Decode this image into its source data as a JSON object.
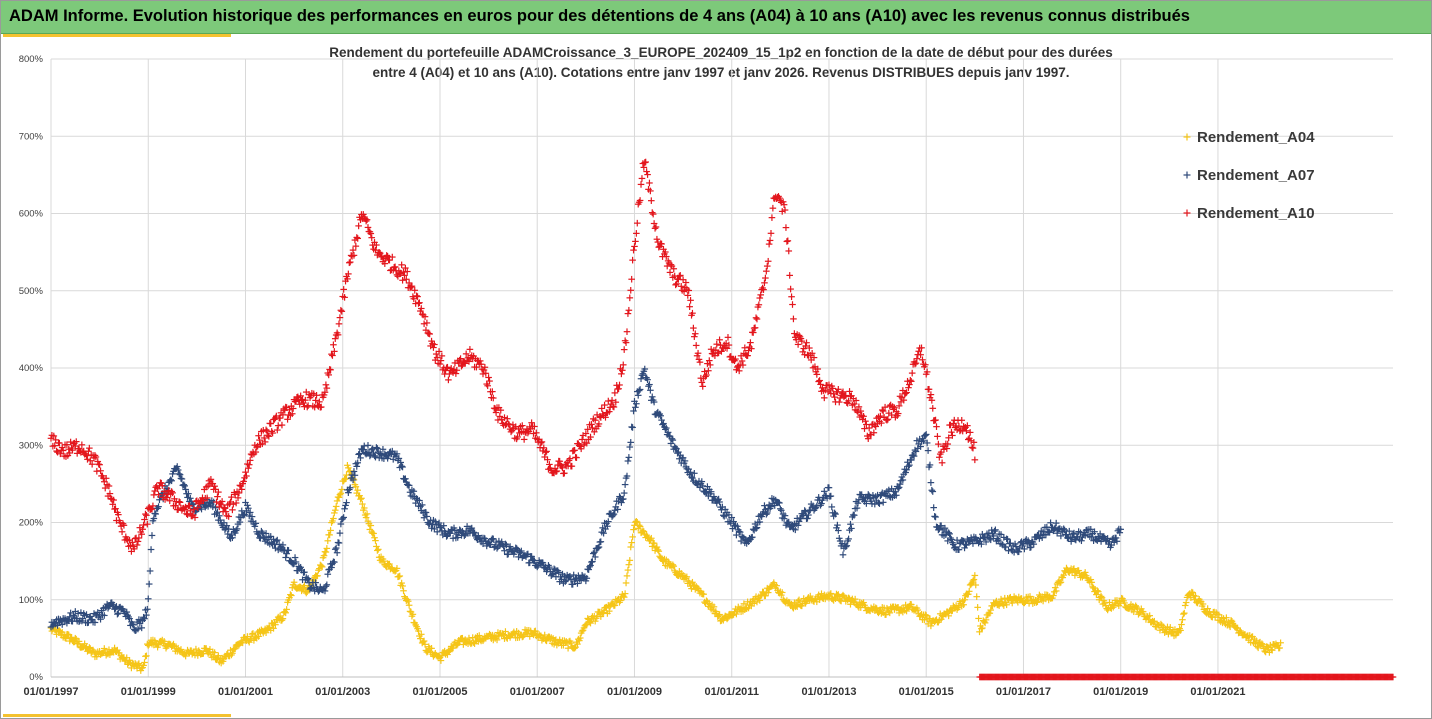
{
  "header": {
    "title": "ADAM Informe. Evolution historique des performances en euros pour des détentions de 4 ans (A04) à 10 ans (A10) avec les revenus connus distribués"
  },
  "colors": {
    "header_bg": "#7dc97a",
    "accent": "#f4c230",
    "series_A04": "#f5c518",
    "series_A07": "#2f4a7a",
    "series_A10": "#e3161d",
    "grid": "#d9d9d9"
  },
  "chart_data": {
    "type": "scatter",
    "marker": "plus",
    "title_lines": [
      "Rendement du portefeuille ADAMCroissance_3_EUROPE_202409_15_1p2  en fonction de la date de début pour des durées",
      "entre 4 (A04) et 10 ans (A10). Cotations entre janv 1997 et janv 2026. Revenus DISTRIBUES depuis janv 1997."
    ],
    "x_axis": {
      "unit": "year",
      "range": [
        1997.0,
        2024.6
      ],
      "tick_values": [
        1997,
        1999,
        2001,
        2003,
        2005,
        2007,
        2009,
        2011,
        2013,
        2015,
        2017,
        2019,
        2021
      ],
      "tick_labels": [
        "01/01/1997",
        "01/01/1999",
        "01/01/2001",
        "01/01/2003",
        "01/01/2005",
        "01/01/2007",
        "01/01/2009",
        "01/01/2011",
        "01/01/2013",
        "01/01/2015",
        "01/01/2017",
        "01/01/2019",
        "01/01/2021"
      ]
    },
    "y_axis": {
      "range": [
        0,
        800
      ],
      "tick_values": [
        0,
        100,
        200,
        300,
        400,
        500,
        600,
        700,
        800
      ],
      "tick_labels": [
        "0%",
        "100%",
        "200%",
        "300%",
        "400%",
        "500%",
        "600%",
        "700%",
        "800%"
      ],
      "grid": true
    },
    "legend": {
      "position": "right",
      "entries": [
        "Rendement_A04",
        "Rendement_A07",
        "Rendement_A10"
      ]
    },
    "series": [
      {
        "name": "Rendement_A04",
        "color": "#f5c518",
        "x_start": 1997.0,
        "x_end": 2022.3,
        "anchors": [
          [
            1997.0,
            62
          ],
          [
            1997.4,
            50
          ],
          [
            1997.9,
            30
          ],
          [
            1998.3,
            35
          ],
          [
            1998.6,
            18
          ],
          [
            1998.9,
            10
          ],
          [
            1999.0,
            45
          ],
          [
            1999.4,
            42
          ],
          [
            1999.8,
            30
          ],
          [
            2000.2,
            35
          ],
          [
            2000.5,
            20
          ],
          [
            2000.9,
            45
          ],
          [
            2001.4,
            58
          ],
          [
            2001.8,
            80
          ],
          [
            2002.0,
            120
          ],
          [
            2002.3,
            112
          ],
          [
            2002.6,
            150
          ],
          [
            2002.9,
            230
          ],
          [
            2003.1,
            270
          ],
          [
            2003.4,
            225
          ],
          [
            2003.8,
            150
          ],
          [
            2004.1,
            140
          ],
          [
            2004.4,
            85
          ],
          [
            2004.7,
            38
          ],
          [
            2005.0,
            25
          ],
          [
            2005.4,
            45
          ],
          [
            2005.9,
            50
          ],
          [
            2006.4,
            55
          ],
          [
            2006.9,
            57
          ],
          [
            2007.4,
            45
          ],
          [
            2007.8,
            40
          ],
          [
            2008.0,
            70
          ],
          [
            2008.4,
            85
          ],
          [
            2008.8,
            105
          ],
          [
            2009.0,
            200
          ],
          [
            2009.3,
            180
          ],
          [
            2009.6,
            150
          ],
          [
            2010.0,
            130
          ],
          [
            2010.4,
            105
          ],
          [
            2010.8,
            75
          ],
          [
            2011.1,
            85
          ],
          [
            2011.5,
            100
          ],
          [
            2011.9,
            120
          ],
          [
            2012.2,
            92
          ],
          [
            2012.6,
            100
          ],
          [
            2013.0,
            105
          ],
          [
            2013.4,
            100
          ],
          [
            2013.8,
            90
          ],
          [
            2014.2,
            85
          ],
          [
            2014.7,
            90
          ],
          [
            2015.1,
            70
          ],
          [
            2015.5,
            85
          ],
          [
            2015.8,
            100
          ],
          [
            2016.0,
            130
          ],
          [
            2016.1,
            60
          ],
          [
            2016.4,
            95
          ],
          [
            2016.8,
            100
          ],
          [
            2017.2,
            100
          ],
          [
            2017.6,
            105
          ],
          [
            2017.9,
            140
          ],
          [
            2018.3,
            130
          ],
          [
            2018.7,
            90
          ],
          [
            2019.0,
            98
          ],
          [
            2019.4,
            85
          ],
          [
            2019.8,
            65
          ],
          [
            2020.2,
            55
          ],
          [
            2020.4,
            110
          ],
          [
            2020.8,
            85
          ],
          [
            2021.3,
            68
          ],
          [
            2021.7,
            48
          ],
          [
            2022.0,
            35
          ],
          [
            2022.3,
            40
          ]
        ]
      },
      {
        "name": "Rendement_A07",
        "color": "#2f4a7a",
        "x_start": 1997.0,
        "x_end": 2019.0,
        "anchors": [
          [
            1997.0,
            70
          ],
          [
            1997.5,
            78
          ],
          [
            1997.9,
            75
          ],
          [
            1998.2,
            92
          ],
          [
            1998.5,
            85
          ],
          [
            1998.7,
            62
          ],
          [
            1998.9,
            72
          ],
          [
            1999.0,
            95
          ],
          [
            1999.1,
            210
          ],
          [
            1999.3,
            235
          ],
          [
            1999.6,
            270
          ],
          [
            1999.9,
            220
          ],
          [
            2000.3,
            225
          ],
          [
            2000.7,
            180
          ],
          [
            2001.0,
            220
          ],
          [
            2001.3,
            185
          ],
          [
            2001.7,
            170
          ],
          [
            2002.0,
            150
          ],
          [
            2002.3,
            120
          ],
          [
            2002.6,
            110
          ],
          [
            2002.9,
            170
          ],
          [
            2003.1,
            240
          ],
          [
            2003.4,
            295
          ],
          [
            2003.8,
            290
          ],
          [
            2004.1,
            285
          ],
          [
            2004.4,
            240
          ],
          [
            2004.8,
            200
          ],
          [
            2005.2,
            185
          ],
          [
            2005.6,
            190
          ],
          [
            2006.0,
            175
          ],
          [
            2006.4,
            165
          ],
          [
            2006.8,
            155
          ],
          [
            2007.2,
            140
          ],
          [
            2007.6,
            125
          ],
          [
            2008.0,
            130
          ],
          [
            2008.4,
            195
          ],
          [
            2008.8,
            240
          ],
          [
            2009.0,
            350
          ],
          [
            2009.2,
            400
          ],
          [
            2009.4,
            350
          ],
          [
            2009.8,
            300
          ],
          [
            2010.2,
            260
          ],
          [
            2010.6,
            235
          ],
          [
            2011.0,
            200
          ],
          [
            2011.3,
            170
          ],
          [
            2011.6,
            210
          ],
          [
            2011.9,
            230
          ],
          [
            2012.2,
            190
          ],
          [
            2012.6,
            215
          ],
          [
            2013.0,
            240
          ],
          [
            2013.3,
            160
          ],
          [
            2013.6,
            230
          ],
          [
            2014.0,
            230
          ],
          [
            2014.4,
            240
          ],
          [
            2014.8,
            300
          ],
          [
            2015.0,
            310
          ],
          [
            2015.2,
            200
          ],
          [
            2015.6,
            170
          ],
          [
            2016.0,
            175
          ],
          [
            2016.4,
            185
          ],
          [
            2016.8,
            165
          ],
          [
            2017.2,
            175
          ],
          [
            2017.6,
            195
          ],
          [
            2018.0,
            180
          ],
          [
            2018.4,
            185
          ],
          [
            2018.8,
            170
          ],
          [
            2019.0,
            190
          ]
        ]
      },
      {
        "name": "Rendement_A10",
        "color": "#e3161d",
        "x_start": 1997.0,
        "x_end": 2016.0,
        "anchors": [
          [
            1997.0,
            305
          ],
          [
            1997.3,
            292
          ],
          [
            1997.6,
            300
          ],
          [
            1997.9,
            280
          ],
          [
            1998.2,
            240
          ],
          [
            1998.4,
            200
          ],
          [
            1998.7,
            165
          ],
          [
            1999.0,
            210
          ],
          [
            1999.2,
            245
          ],
          [
            1999.6,
            225
          ],
          [
            1999.9,
            210
          ],
          [
            2000.3,
            250
          ],
          [
            2000.6,
            210
          ],
          [
            2000.9,
            245
          ],
          [
            2001.2,
            300
          ],
          [
            2001.5,
            320
          ],
          [
            2001.9,
            345
          ],
          [
            2002.2,
            360
          ],
          [
            2002.6,
            355
          ],
          [
            2002.9,
            450
          ],
          [
            2003.1,
            520
          ],
          [
            2003.4,
            600
          ],
          [
            2003.7,
            550
          ],
          [
            2004.0,
            535
          ],
          [
            2004.3,
            520
          ],
          [
            2004.6,
            480
          ],
          [
            2004.9,
            420
          ],
          [
            2005.2,
            390
          ],
          [
            2005.6,
            415
          ],
          [
            2005.9,
            400
          ],
          [
            2006.2,
            340
          ],
          [
            2006.6,
            315
          ],
          [
            2006.9,
            320
          ],
          [
            2007.3,
            270
          ],
          [
            2007.6,
            272
          ],
          [
            2007.9,
            300
          ],
          [
            2008.2,
            330
          ],
          [
            2008.6,
            360
          ],
          [
            2008.8,
            420
          ],
          [
            2009.0,
            560
          ],
          [
            2009.2,
            670
          ],
          [
            2009.5,
            560
          ],
          [
            2009.8,
            520
          ],
          [
            2010.1,
            500
          ],
          [
            2010.4,
            380
          ],
          [
            2010.6,
            420
          ],
          [
            2010.9,
            435
          ],
          [
            2011.1,
            400
          ],
          [
            2011.4,
            430
          ],
          [
            2011.7,
            520
          ],
          [
            2011.9,
            630
          ],
          [
            2012.1,
            600
          ],
          [
            2012.3,
            440
          ],
          [
            2012.6,
            420
          ],
          [
            2012.9,
            370
          ],
          [
            2013.2,
            365
          ],
          [
            2013.5,
            360
          ],
          [
            2013.8,
            315
          ],
          [
            2014.1,
            340
          ],
          [
            2014.4,
            345
          ],
          [
            2014.7,
            390
          ],
          [
            2014.9,
            425
          ],
          [
            2015.1,
            360
          ],
          [
            2015.3,
            280
          ],
          [
            2015.5,
            320
          ],
          [
            2015.8,
            330
          ],
          [
            2016.0,
            290
          ]
        ],
        "zero_baseline": {
          "value": 0,
          "x_start": 2016.1,
          "x_end": 2024.6
        }
      }
    ]
  }
}
